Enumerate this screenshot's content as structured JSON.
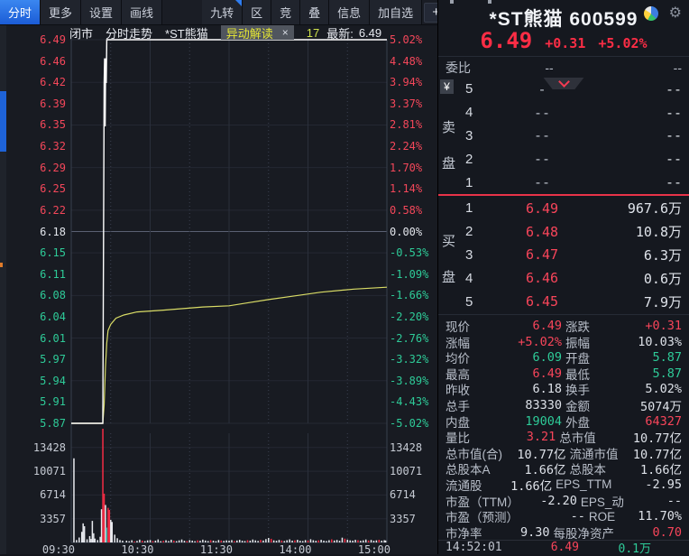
{
  "toolbar": {
    "tabs": [
      {
        "label": "分时",
        "active": true
      },
      {
        "label": "更多",
        "active": false
      },
      {
        "label": "设置",
        "active": false
      },
      {
        "label": "画线",
        "active": false
      }
    ],
    "tools": [
      {
        "label": "九转",
        "corner": true
      },
      {
        "label": "区",
        "corner": false
      },
      {
        "label": "竞",
        "corner": false
      },
      {
        "label": "叠",
        "corner": false
      },
      {
        "label": "信息",
        "corner": false
      },
      {
        "label": "加自选",
        "corner": false
      }
    ],
    "icons": [
      {
        "name": "plus-icon",
        "glyph": "+",
        "small": false
      },
      {
        "name": "minus-icon",
        "glyph": "−",
        "small": false
      },
      {
        "name": "arrow-to-bar-icon",
        "glyph": "⇥",
        "small": false
      },
      {
        "name": "caret-down-icon",
        "glyph": "▼",
        "small": true
      }
    ]
  },
  "chart_header": {
    "market_status": "闭市",
    "view": "分时走势",
    "stock": "*ST熊猫",
    "chip": "异动解读",
    "chip_close": "×",
    "badge": "17",
    "latest_label": "最新:",
    "latest_value": "6.49"
  },
  "chart_data": {
    "type": "line",
    "title": "*ST熊猫 分时走势",
    "x_axis": {
      "labels": [
        "09:30",
        "10:30",
        "11:30",
        "14:00",
        "15:00"
      ],
      "label_minutes": [
        0,
        60,
        120,
        180,
        240
      ],
      "minor_minutes": [
        30,
        90,
        150,
        210
      ],
      "total_minutes": 240
    },
    "price_axis": {
      "max": 6.49,
      "min": 5.87,
      "prev_close": 6.18,
      "prev_close_index": 9,
      "values": [
        "6.49",
        "6.46",
        "6.42",
        "6.39",
        "6.35",
        "6.32",
        "6.29",
        "6.25",
        "6.22",
        "6.18",
        "6.15",
        "6.11",
        "6.08",
        "6.04",
        "6.01",
        "5.97",
        "5.94",
        "5.91",
        "5.87"
      ]
    },
    "pct_axis": {
      "values": [
        "5.02%",
        "4.48%",
        "3.94%",
        "3.37%",
        "2.81%",
        "2.24%",
        "1.70%",
        "1.14%",
        "0.58%",
        "0.00%",
        "-0.53%",
        "-1.09%",
        "-1.66%",
        "-2.20%",
        "-2.76%",
        "-3.32%",
        "-3.89%",
        "-4.43%",
        "-5.02%"
      ]
    },
    "volume_axis": {
      "values": [
        13428,
        10071,
        6714,
        3357
      ]
    },
    "series": [
      {
        "name": "price",
        "color": "#ffffff",
        "points": [
          [
            0,
            5.87
          ],
          [
            24,
            5.87
          ],
          [
            25,
            6.42
          ],
          [
            25.4,
            6.46
          ],
          [
            25.8,
            6.35
          ],
          [
            26.2,
            6.46
          ],
          [
            26.6,
            6.42
          ],
          [
            27,
            6.49
          ],
          [
            240,
            6.49
          ]
        ]
      },
      {
        "name": "average",
        "color": "#d9dc66",
        "points": [
          [
            0,
            5.87
          ],
          [
            24,
            5.87
          ],
          [
            25,
            5.9
          ],
          [
            26,
            5.96
          ],
          [
            27,
            6.0
          ],
          [
            28,
            6.02
          ],
          [
            30,
            6.03
          ],
          [
            34,
            6.04
          ],
          [
            40,
            6.045
          ],
          [
            50,
            6.05
          ],
          [
            70,
            6.053
          ],
          [
            100,
            6.058
          ],
          [
            120,
            6.06
          ],
          [
            135,
            6.065
          ],
          [
            150,
            6.07
          ],
          [
            170,
            6.076
          ],
          [
            190,
            6.082
          ],
          [
            215,
            6.087
          ],
          [
            240,
            6.09
          ]
        ]
      }
    ],
    "volume_bars": [
      [
        2,
        11900,
        "w"
      ],
      [
        4,
        350,
        "w"
      ],
      [
        6,
        700,
        "w"
      ],
      [
        8,
        1500,
        "w"
      ],
      [
        9,
        2700,
        "w"
      ],
      [
        10,
        2300,
        "w"
      ],
      [
        12,
        450,
        "w"
      ],
      [
        14,
        900,
        "w"
      ],
      [
        15,
        500,
        "w"
      ],
      [
        16,
        3050,
        "w"
      ],
      [
        17,
        1300,
        "w"
      ],
      [
        18,
        550,
        "w"
      ],
      [
        20,
        350,
        "w"
      ],
      [
        22,
        800,
        "w"
      ],
      [
        23,
        4700,
        "w"
      ],
      [
        24,
        16500,
        "r"
      ],
      [
        25,
        6900,
        "r"
      ],
      [
        26,
        5300,
        "w"
      ],
      [
        27,
        2100,
        "g"
      ],
      [
        28,
        4900,
        "r"
      ],
      [
        29,
        4600,
        "r"
      ],
      [
        30,
        3200,
        "w"
      ],
      [
        31,
        2900,
        "w"
      ],
      [
        33,
        1100,
        "w"
      ],
      [
        35,
        600,
        "w"
      ],
      [
        37,
        350,
        "w"
      ],
      [
        39,
        250,
        "w"
      ],
      [
        42,
        260,
        "w"
      ],
      [
        44,
        180,
        "w"
      ],
      [
        46,
        320,
        "w"
      ],
      [
        48,
        150,
        "r"
      ],
      [
        50,
        220,
        "w"
      ],
      [
        52,
        400,
        "w"
      ],
      [
        54,
        260,
        "r"
      ],
      [
        56,
        180,
        "w"
      ],
      [
        58,
        300,
        "w"
      ],
      [
        60,
        350,
        "w"
      ],
      [
        62,
        200,
        "r"
      ],
      [
        64,
        260,
        "w"
      ],
      [
        66,
        430,
        "w"
      ],
      [
        68,
        180,
        "w"
      ],
      [
        70,
        240,
        "r"
      ],
      [
        72,
        320,
        "w"
      ],
      [
        74,
        200,
        "w"
      ],
      [
        76,
        390,
        "w"
      ],
      [
        78,
        260,
        "r"
      ],
      [
        80,
        180,
        "w"
      ],
      [
        82,
        300,
        "w"
      ],
      [
        84,
        420,
        "w"
      ],
      [
        86,
        240,
        "w"
      ],
      [
        88,
        200,
        "r"
      ],
      [
        90,
        340,
        "w"
      ],
      [
        92,
        260,
        "w"
      ],
      [
        94,
        180,
        "w"
      ],
      [
        96,
        300,
        "r"
      ],
      [
        98,
        240,
        "w"
      ],
      [
        100,
        400,
        "w"
      ],
      [
        102,
        280,
        "w"
      ],
      [
        104,
        200,
        "w"
      ],
      [
        106,
        320,
        "r"
      ],
      [
        108,
        260,
        "w"
      ],
      [
        110,
        180,
        "w"
      ],
      [
        112,
        350,
        "w"
      ],
      [
        114,
        280,
        "r"
      ],
      [
        116,
        220,
        "w"
      ],
      [
        118,
        300,
        "w"
      ],
      [
        120,
        260,
        "w"
      ],
      [
        122,
        340,
        "w"
      ],
      [
        124,
        200,
        "r"
      ],
      [
        126,
        280,
        "w"
      ],
      [
        128,
        380,
        "w"
      ],
      [
        130,
        240,
        "w"
      ],
      [
        132,
        200,
        "w"
      ],
      [
        134,
        320,
        "r"
      ],
      [
        136,
        260,
        "w"
      ],
      [
        138,
        420,
        "w"
      ],
      [
        140,
        300,
        "w"
      ],
      [
        142,
        220,
        "w"
      ],
      [
        144,
        360,
        "r"
      ],
      [
        146,
        280,
        "w"
      ],
      [
        148,
        480,
        "w"
      ],
      [
        150,
        640,
        "w"
      ],
      [
        152,
        520,
        "r"
      ],
      [
        154,
        300,
        "w"
      ],
      [
        156,
        240,
        "w"
      ],
      [
        158,
        360,
        "w"
      ],
      [
        160,
        280,
        "r"
      ],
      [
        162,
        200,
        "w"
      ],
      [
        164,
        320,
        "w"
      ],
      [
        166,
        440,
        "w"
      ],
      [
        168,
        260,
        "w"
      ],
      [
        170,
        300,
        "r"
      ],
      [
        172,
        380,
        "w"
      ],
      [
        174,
        240,
        "w"
      ],
      [
        176,
        200,
        "w"
      ],
      [
        178,
        340,
        "w"
      ],
      [
        180,
        280,
        "r"
      ],
      [
        182,
        460,
        "w"
      ],
      [
        184,
        320,
        "w"
      ],
      [
        186,
        240,
        "w"
      ],
      [
        188,
        300,
        "r"
      ],
      [
        190,
        380,
        "w"
      ],
      [
        192,
        260,
        "w"
      ],
      [
        194,
        200,
        "w"
      ],
      [
        196,
        320,
        "w"
      ],
      [
        198,
        440,
        "r"
      ],
      [
        200,
        280,
        "w"
      ],
      [
        202,
        360,
        "w"
      ],
      [
        204,
        240,
        "w"
      ],
      [
        206,
        680,
        "w"
      ],
      [
        208,
        540,
        "r"
      ],
      [
        210,
        400,
        "w"
      ],
      [
        212,
        300,
        "w"
      ],
      [
        214,
        260,
        "w"
      ],
      [
        216,
        380,
        "w"
      ],
      [
        218,
        320,
        "r"
      ],
      [
        220,
        240,
        "w"
      ],
      [
        222,
        300,
        "w"
      ],
      [
        224,
        420,
        "w"
      ],
      [
        226,
        280,
        "r"
      ],
      [
        228,
        360,
        "w"
      ],
      [
        230,
        240,
        "w"
      ],
      [
        232,
        300,
        "w"
      ],
      [
        234,
        380,
        "r"
      ],
      [
        236,
        260,
        "w"
      ],
      [
        238,
        320,
        "w"
      ],
      [
        239,
        280,
        "w"
      ]
    ]
  },
  "quote": {
    "name": "*ST熊猫",
    "code": "600599",
    "title": "*ST熊猫 600599",
    "price": "6.49",
    "change": "+0.31",
    "change_pct": "+5.02%",
    "weibi": {
      "label": "委比",
      "value1": "--",
      "value2": "--"
    },
    "currency_badge": "¥",
    "sell_side_label": {
      "0": "卖",
      "1": "盘"
    },
    "buy_side_label": {
      "0": "买",
      "1": "盘"
    },
    "sell_levels": [
      {
        "level": "5",
        "price": "-",
        "volume": "--"
      },
      {
        "level": "4",
        "price": "--",
        "volume": "--"
      },
      {
        "level": "3",
        "price": "--",
        "volume": "--"
      },
      {
        "level": "2",
        "price": "--",
        "volume": "--"
      },
      {
        "level": "1",
        "price": "--",
        "volume": "--"
      }
    ],
    "buy_levels": [
      {
        "level": "1",
        "price": "6.49",
        "volume": "967.6万"
      },
      {
        "level": "2",
        "price": "6.48",
        "volume": "10.8万"
      },
      {
        "level": "3",
        "price": "6.47",
        "volume": "6.3万"
      },
      {
        "level": "4",
        "price": "6.46",
        "volume": "0.6万"
      },
      {
        "level": "5",
        "price": "6.45",
        "volume": "7.9万"
      }
    ],
    "stats": [
      [
        "现价",
        "6.49",
        "red",
        "涨跌",
        "+0.31",
        "red"
      ],
      [
        "涨幅",
        "+5.02%",
        "red",
        "振幅",
        "10.03%",
        "white"
      ],
      [
        "均价",
        "6.09",
        "green",
        "开盘",
        "5.87",
        "green"
      ],
      [
        "最高",
        "6.49",
        "red",
        "最低",
        "5.87",
        "green"
      ],
      [
        "昨收",
        "6.18",
        "white",
        "换手",
        "5.02%",
        "white"
      ],
      [
        "总手",
        "83330",
        "white",
        "金额",
        "5074万",
        "white"
      ],
      [
        "内盘",
        "19004",
        "green",
        "外盘",
        "64327",
        "red"
      ],
      [
        "量比",
        "3.21",
        "red",
        "总市值",
        "10.77亿",
        "white"
      ],
      [
        "总市值(合)",
        "10.77亿",
        "white",
        "流通市值",
        "10.77亿",
        "white"
      ],
      [
        "总股本A",
        "1.66亿",
        "white",
        "总股本",
        "1.66亿",
        "white"
      ],
      [
        "流通股",
        "1.66亿",
        "white",
        "EPS_TTM",
        "-2.95",
        "white"
      ],
      [
        "市盈（TTM）",
        "-2.20",
        "white",
        "EPS_动",
        "--",
        "white"
      ],
      [
        "市盈（预测）",
        "--",
        "white",
        "ROE",
        "11.70%",
        "white"
      ],
      [
        "市净率",
        "9.30",
        "white",
        "每股净资产",
        "0.70",
        "red"
      ]
    ],
    "tick": {
      "time": "14:52:01",
      "price": "6.49",
      "volume": "0.1万"
    }
  },
  "colors": {
    "up": "#f8455a",
    "down": "#2ecb98",
    "neutral": "#dde1e8",
    "accent_blue": "#2473e8",
    "avg_line": "#d9dc66",
    "price_line": "#ffffff",
    "divider_red": "#e73349",
    "volume_up": "#f52c44"
  }
}
